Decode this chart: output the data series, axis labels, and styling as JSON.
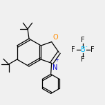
{
  "bg_color": "#f0f0f0",
  "line_color": "#000000",
  "atom_colors": {
    "O": "#ff8c00",
    "N": "#0000cd",
    "B": "#00bfff",
    "F": "#000000",
    "C": "#000000"
  },
  "font_size": 7,
  "lw": 0.9
}
